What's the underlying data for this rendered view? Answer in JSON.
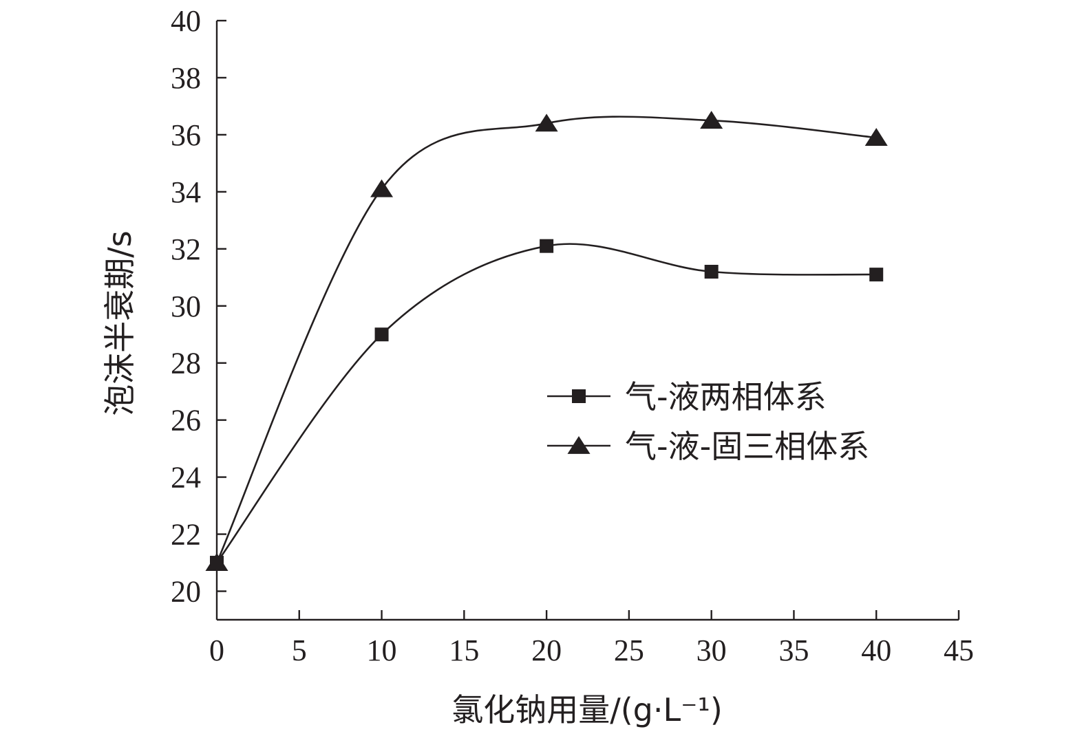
{
  "chart_data": {
    "type": "line",
    "title": "",
    "xlabel": "氯化钠用量/(g·L⁻¹)",
    "ylabel": "泡沫半衰期/s",
    "xlim": [
      0,
      45
    ],
    "ylim": [
      19,
      40
    ],
    "x_ticks": [
      "0",
      "5",
      "10",
      "15",
      "20",
      "25",
      "30",
      "35",
      "40",
      "45"
    ],
    "y_ticks": [
      "20",
      "22",
      "24",
      "26",
      "28",
      "30",
      "32",
      "34",
      "36",
      "38",
      "40"
    ],
    "grid": false,
    "legend_position": "center-right",
    "x": [
      0,
      10,
      20,
      30,
      40
    ],
    "series": [
      {
        "name": "气-液两相体系",
        "marker": "square",
        "values": [
          21.0,
          29.0,
          32.1,
          31.2,
          31.1
        ]
      },
      {
        "name": "气-液-固三相体系",
        "marker": "triangle",
        "values": [
          21.0,
          34.1,
          36.4,
          36.5,
          35.9
        ]
      }
    ]
  }
}
